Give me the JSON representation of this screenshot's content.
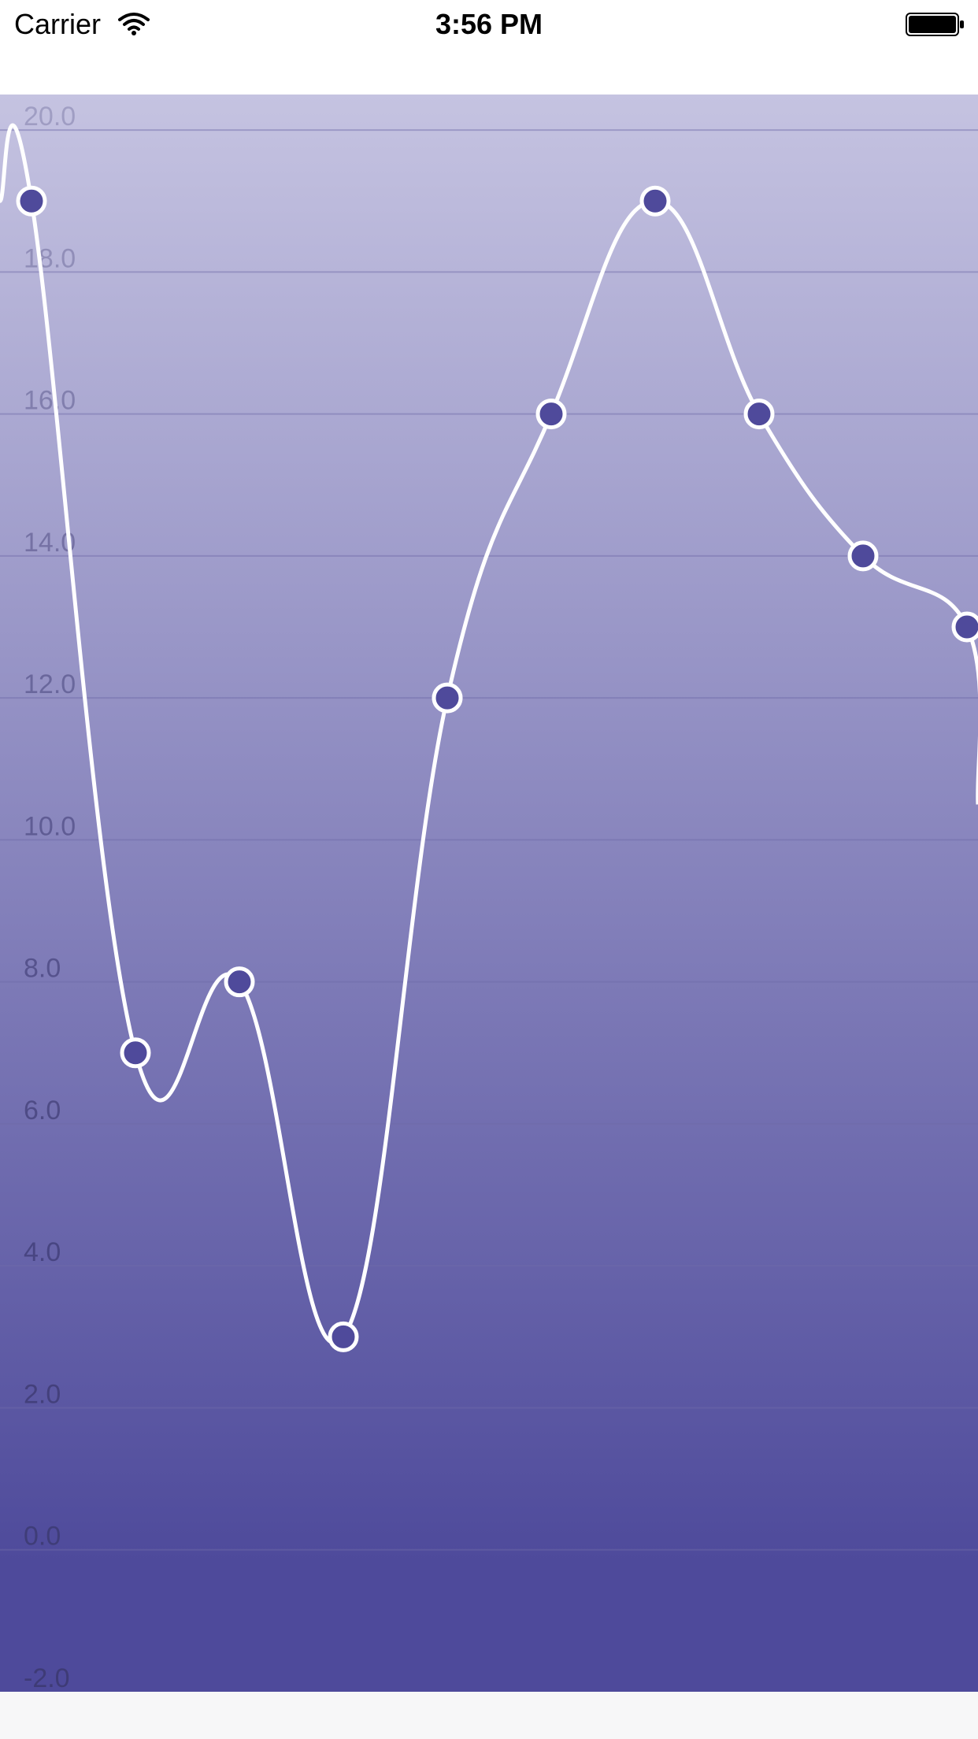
{
  "status_bar": {
    "carrier": "Carrier",
    "time": "3:56 PM",
    "wifi_icon": "wifi-icon",
    "battery_icon": "battery-icon"
  },
  "colors": {
    "gradient_top": "#c5c3e1",
    "gradient_bottom": "#4e4a9b",
    "line": "#ffffff",
    "point_fill": "#4f4a9b",
    "point_stroke": "#ffffff",
    "grid": "#6f6aa8",
    "axis_label": "#3d3a72"
  },
  "chart_data": {
    "type": "line",
    "title": "",
    "xlabel": "",
    "ylabel": "",
    "x": [
      0,
      1,
      2,
      3,
      4,
      5,
      6,
      7,
      8,
      9
    ],
    "series": [
      {
        "values": [
          19,
          7,
          8,
          3,
          12,
          16,
          19,
          16,
          14,
          13
        ]
      }
    ],
    "ylim": [
      -2,
      20.5
    ],
    "yticks": [
      -2,
      0,
      2,
      4,
      6,
      8,
      10,
      12,
      14,
      16,
      18,
      20
    ],
    "ytick_labels": [
      "-2.0",
      "0.0",
      "2.0",
      "4.0",
      "6.0",
      "8.0",
      "10.0",
      "12.0",
      "14.0",
      "16.0",
      "18.0",
      "20.0"
    ],
    "grid": true,
    "legend": "none",
    "curve": "smooth"
  }
}
